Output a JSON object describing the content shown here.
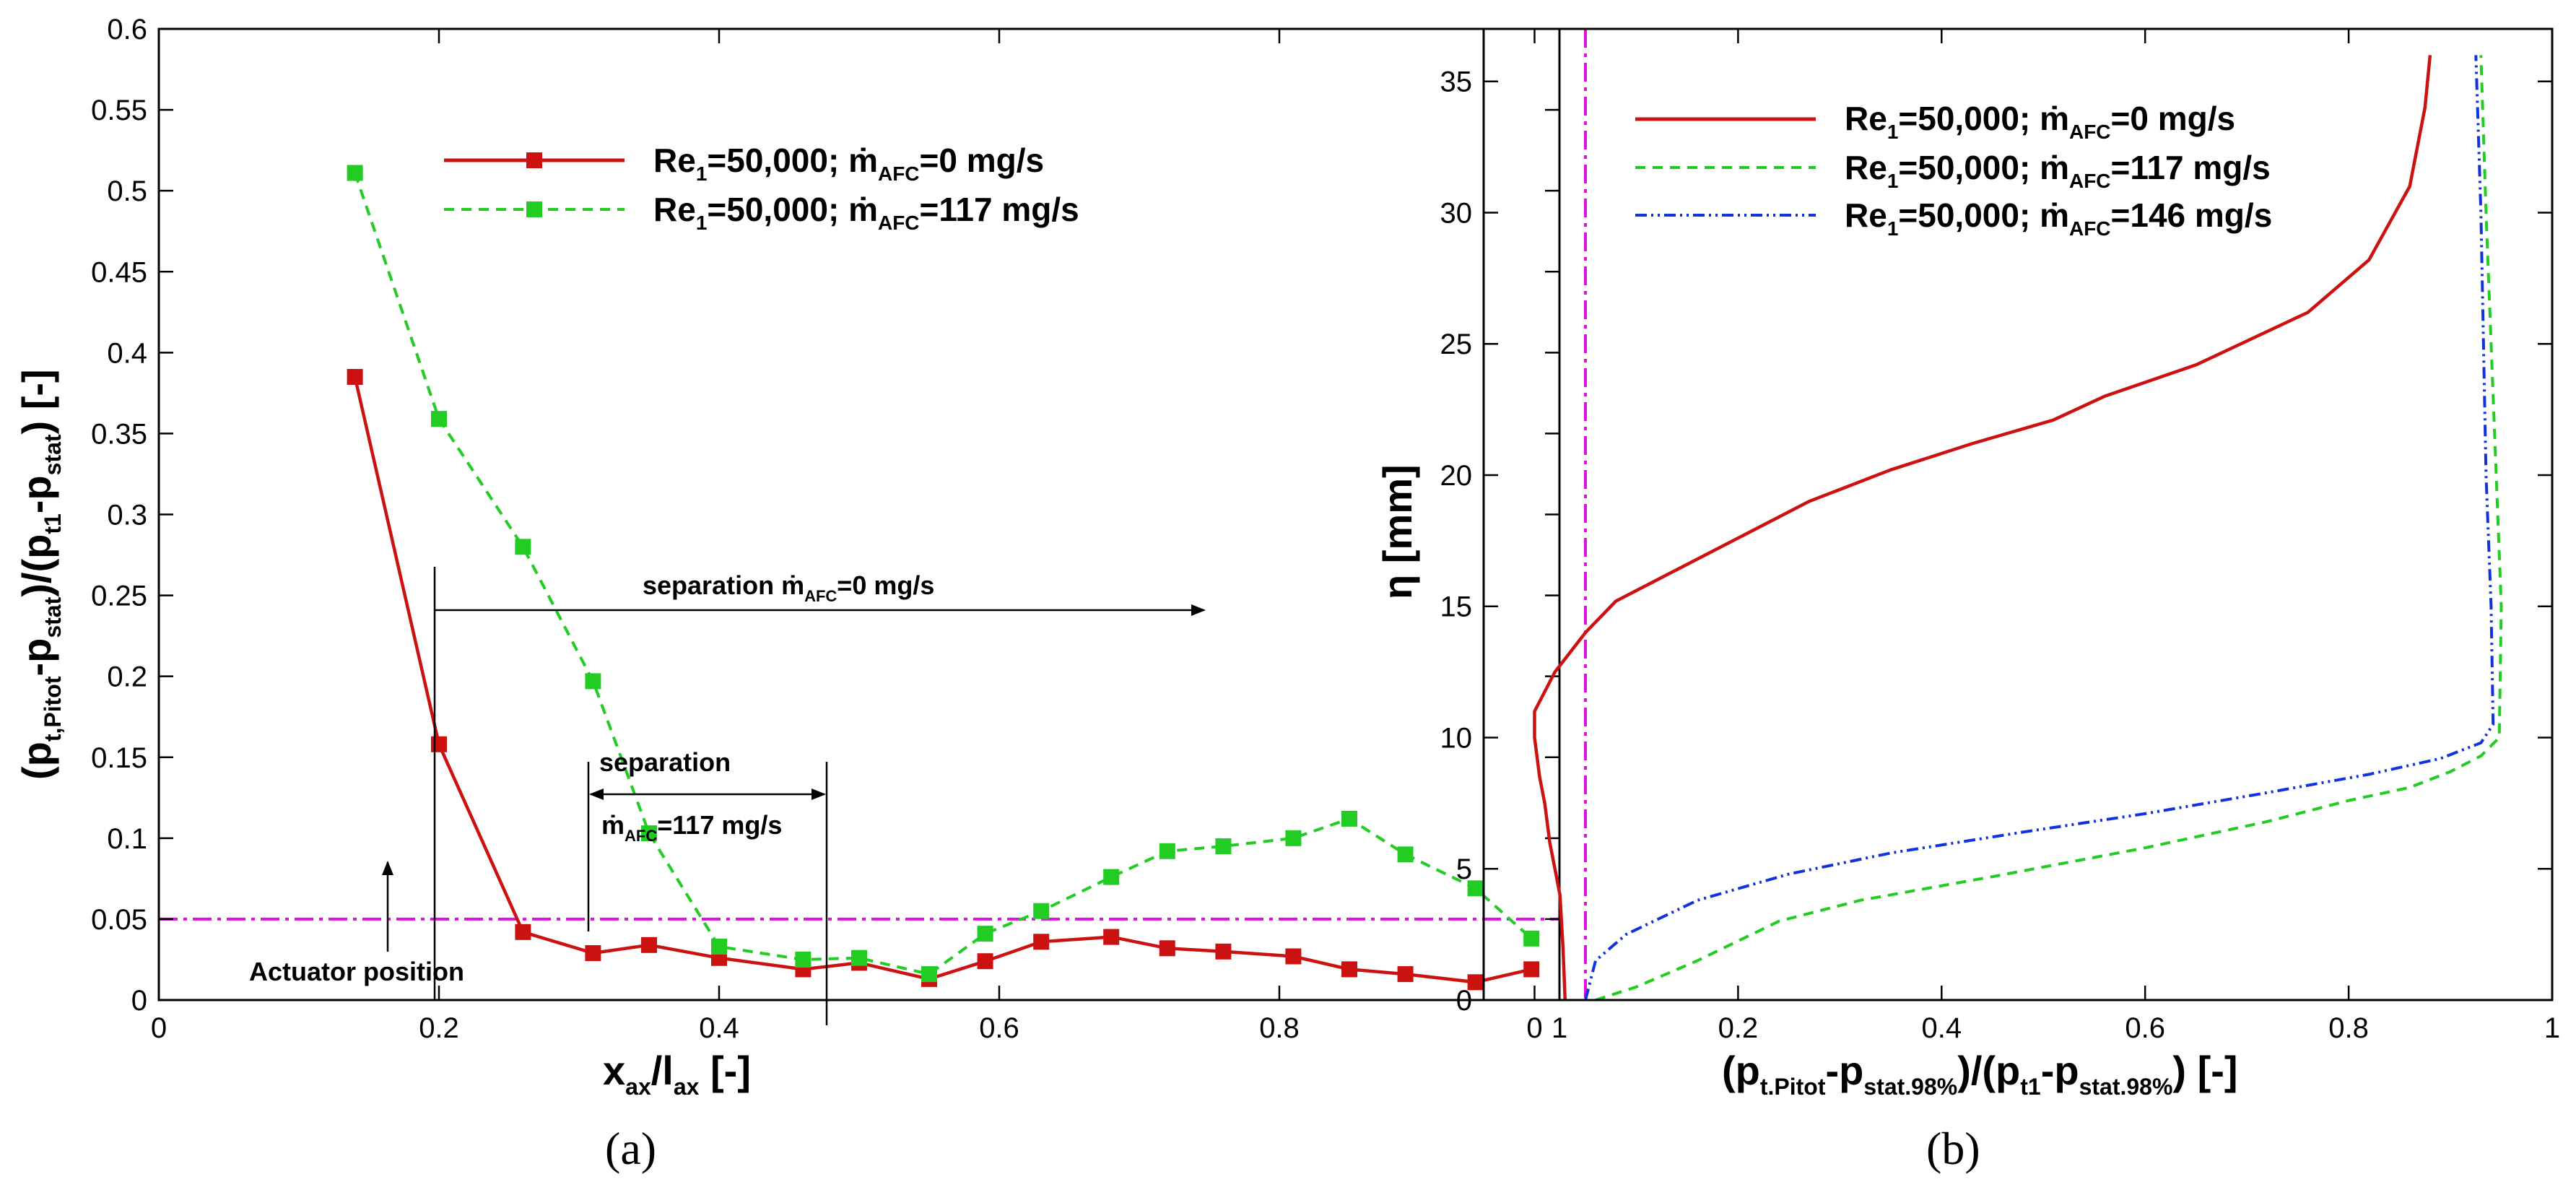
{
  "chart_data": [
    {
      "type": "line",
      "panel_label": "(a)",
      "xlim": [
        0,
        1
      ],
      "ylim": [
        0,
        0.6
      ],
      "xticks": [
        "0",
        "0.2",
        "0.4",
        "0.6",
        "0.8",
        "1"
      ],
      "yticks": [
        "0",
        "0.05",
        "0.1",
        "0.15",
        "0.2",
        "0.25",
        "0.3",
        "0.35",
        "0.4",
        "0.45",
        "0.5",
        "0.55",
        "0.6"
      ],
      "xlabel": {
        "main": "x",
        "sub": "ax",
        "mid": "/l",
        "sub2": "ax",
        "tail": " [-]"
      },
      "ylabel": {
        "p1": "(p",
        "s1": "t,Pitot",
        "p2": "-p",
        "s2": "stat",
        "p3": ")/(p",
        "s3": "t1",
        "p4": "-p",
        "s4": "stat",
        "p5": ") [-]"
      },
      "legend_position": "top-right",
      "series": [
        {
          "name": "Re1=50,000; mAFC=0 mg/s",
          "legend": {
            "a": "Re",
            "a_sub": "1",
            "b": "=50,000; ",
            "c": "ṁ",
            "c_sub": "AFC",
            "d": "=0 mg/s"
          },
          "color": "#cc1111",
          "style": "solid-square",
          "x": [
            0.14,
            0.2,
            0.26,
            0.31,
            0.35,
            0.4,
            0.46,
            0.5,
            0.55,
            0.59,
            0.63,
            0.68,
            0.72,
            0.76,
            0.81,
            0.85,
            0.89,
            0.94,
            0.98
          ],
          "y": [
            0.385,
            0.158,
            0.042,
            0.029,
            0.034,
            0.026,
            0.019,
            0.023,
            0.013,
            0.024,
            0.036,
            0.039,
            0.032,
            0.03,
            0.027,
            0.019,
            0.016,
            0.011,
            0.019
          ]
        },
        {
          "name": "Re1=50,000; mAFC=117 mg/s",
          "legend": {
            "a": "Re",
            "a_sub": "1",
            "b": "=50,000; ",
            "c": "ṁ",
            "c_sub": "AFC",
            "d": "=117 mg/s"
          },
          "color": "#22cc22",
          "style": "dashed-square",
          "x": [
            0.14,
            0.2,
            0.26,
            0.31,
            0.35,
            0.4,
            0.46,
            0.5,
            0.55,
            0.59,
            0.63,
            0.68,
            0.72,
            0.76,
            0.81,
            0.85,
            0.89,
            0.94,
            0.98
          ],
          "y": [
            0.511,
            0.359,
            0.28,
            0.197,
            0.103,
            0.033,
            0.025,
            0.026,
            0.016,
            0.041,
            0.055,
            0.076,
            0.092,
            0.095,
            0.1,
            0.112,
            0.09,
            0.069,
            0.038
          ]
        }
      ],
      "reference_line": {
        "y": 0.05,
        "color": "#dd11dd"
      },
      "annotations": {
        "separation0": {
          "a": "separation ",
          "b": "ṁ",
          "b_sub": "AFC",
          "c": "=0 mg/s",
          "x_from": 0.253,
          "x_to": 0.96,
          "y": 0.241
        },
        "separation117": {
          "line1": "separation",
          "a": "ṁ",
          "a_sub": "AFC",
          "b": "=117 mg/s",
          "x_from": 0.4,
          "x_to": 0.622,
          "y": 0.13
        },
        "actuator": {
          "text": "Actuator position",
          "x": 0.21,
          "y_from": 0.029,
          "y_to": 0.087
        }
      }
    },
    {
      "type": "line",
      "panel_label": "(b)",
      "xlim": [
        -0.05,
        1
      ],
      "ylim": [
        0,
        37
      ],
      "xticks": [
        "0",
        "0.2",
        "0.4",
        "0.6",
        "0.8",
        "1"
      ],
      "yticks": [
        "0",
        "5",
        "10",
        "15",
        "20",
        "25",
        "30",
        "35"
      ],
      "xlabel": {
        "p1": "(p",
        "s1": "t.Pitot",
        "p2": "-p",
        "s2": "stat.98%",
        "p3": ")/(p",
        "s3": "t1",
        "p4": "-p",
        "s4": "stat.98%",
        "p5": ") [-]"
      },
      "ylabel": "η [mm]",
      "legend_position": "top-right",
      "series": [
        {
          "name": "Re1=50,000; mAFC=0 mg/s",
          "legend": {
            "a": "Re",
            "a_sub": "1",
            "b": "=50,000; ",
            "c": "ṁ",
            "c_sub": "AFC",
            "d": "=0 mg/s"
          },
          "color": "#cc1111",
          "style": "solid",
          "x": [
            0.03,
            0.028,
            0.025,
            0.02,
            0.015,
            0.01,
            0.005,
            0.0,
            0.0,
            0.02,
            0.05,
            0.08,
            0.17,
            0.27,
            0.35,
            0.43,
            0.51,
            0.56,
            0.65,
            0.76,
            0.82,
            0.86,
            0.875,
            0.88
          ],
          "y": [
            0,
            2,
            4,
            5,
            6,
            7.5,
            8.5,
            10,
            11,
            12.5,
            14,
            15.2,
            17,
            19,
            20.2,
            21.2,
            22.1,
            23,
            24.2,
            26.2,
            28.2,
            31,
            34,
            36
          ]
        },
        {
          "name": "Re1=50,000; mAFC=117 mg/s",
          "legend": {
            "a": "Re",
            "a_sub": "1",
            "b": "=50,000; ",
            "c": "ṁ",
            "c_sub": "AFC",
            "d": "=117 mg/s"
          },
          "color": "#22cc22",
          "style": "dashed",
          "x": [
            0.06,
            0.1,
            0.16,
            0.24,
            0.32,
            0.45,
            0.6,
            0.72,
            0.8,
            0.86,
            0.9,
            0.93,
            0.948,
            0.95,
            0.945,
            0.94,
            0.935,
            0.93
          ],
          "y": [
            0,
            0.5,
            1.5,
            3,
            3.8,
            4.7,
            5.8,
            6.8,
            7.6,
            8.1,
            8.7,
            9.3,
            10,
            15,
            20,
            25,
            30,
            36
          ]
        },
        {
          "name": "Re1=50,000; mAFC=146 mg/s",
          "legend": {
            "a": "Re",
            "a_sub": "1",
            "b": "=50,000; ",
            "c": "ṁ",
            "c_sub": "AFC",
            "d": "=146 mg/s"
          },
          "color": "#1133dd",
          "style": "dashdot",
          "x": [
            0.05,
            0.06,
            0.09,
            0.16,
            0.25,
            0.35,
            0.48,
            0.6,
            0.72,
            0.82,
            0.89,
            0.93,
            0.942,
            0.94,
            0.935,
            0.93,
            0.925
          ],
          "y": [
            0,
            1.5,
            2.5,
            3.8,
            4.8,
            5.6,
            6.4,
            7.1,
            7.9,
            8.6,
            9.2,
            9.8,
            10.5,
            15,
            20,
            30,
            36
          ]
        }
      ],
      "reference_line": {
        "x": 0.05,
        "color": "#dd11dd"
      }
    }
  ]
}
